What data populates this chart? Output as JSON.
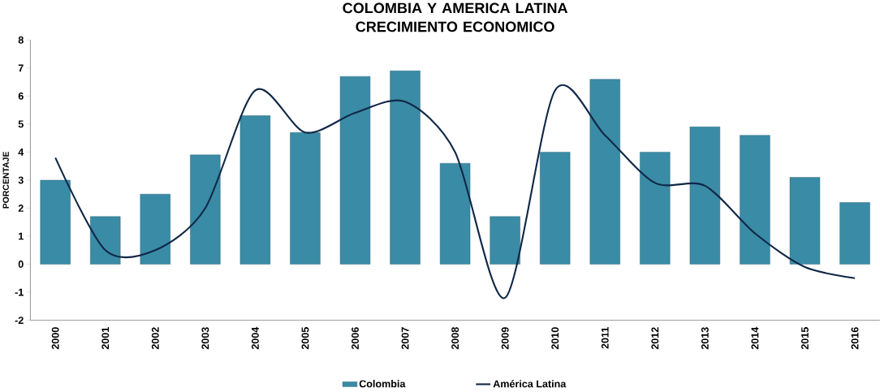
{
  "chart_data": {
    "type": "bar",
    "title": "COLOMBIA Y AMERICA LATINA\nCRECIMIENTO ECONOMICO",
    "ylabel": "PORCENTAJE",
    "categories": [
      "2000",
      "2001",
      "2002",
      "2003",
      "2004",
      "2005",
      "2006",
      "2007",
      "2008",
      "2009",
      "2010",
      "2011",
      "2012",
      "2013",
      "2014",
      "2015",
      "2016"
    ],
    "series": [
      {
        "name": "Colombia",
        "color": "#3a8ba5",
        "values": [
          3.0,
          1.7,
          2.5,
          3.9,
          5.3,
          4.7,
          6.7,
          6.9,
          3.6,
          1.7,
          4.0,
          6.6,
          4.0,
          4.9,
          4.6,
          3.1,
          2.2
        ]
      },
      {
        "name": "América Latina",
        "type": "line",
        "color": "#0f2747",
        "values": [
          3.8,
          0.5,
          0.5,
          2.0,
          6.2,
          4.7,
          5.4,
          5.8,
          4.0,
          -1.2,
          6.2,
          4.6,
          2.9,
          2.8,
          1.1,
          -0.1,
          -0.5
        ]
      }
    ],
    "ylim": [
      -2,
      8
    ],
    "yticks": [
      -2,
      -1,
      0,
      1,
      2,
      3,
      4,
      5,
      6,
      7,
      8
    ],
    "grid": false,
    "legend": "bottom",
    "marker": "none",
    "line_style": "solid"
  }
}
